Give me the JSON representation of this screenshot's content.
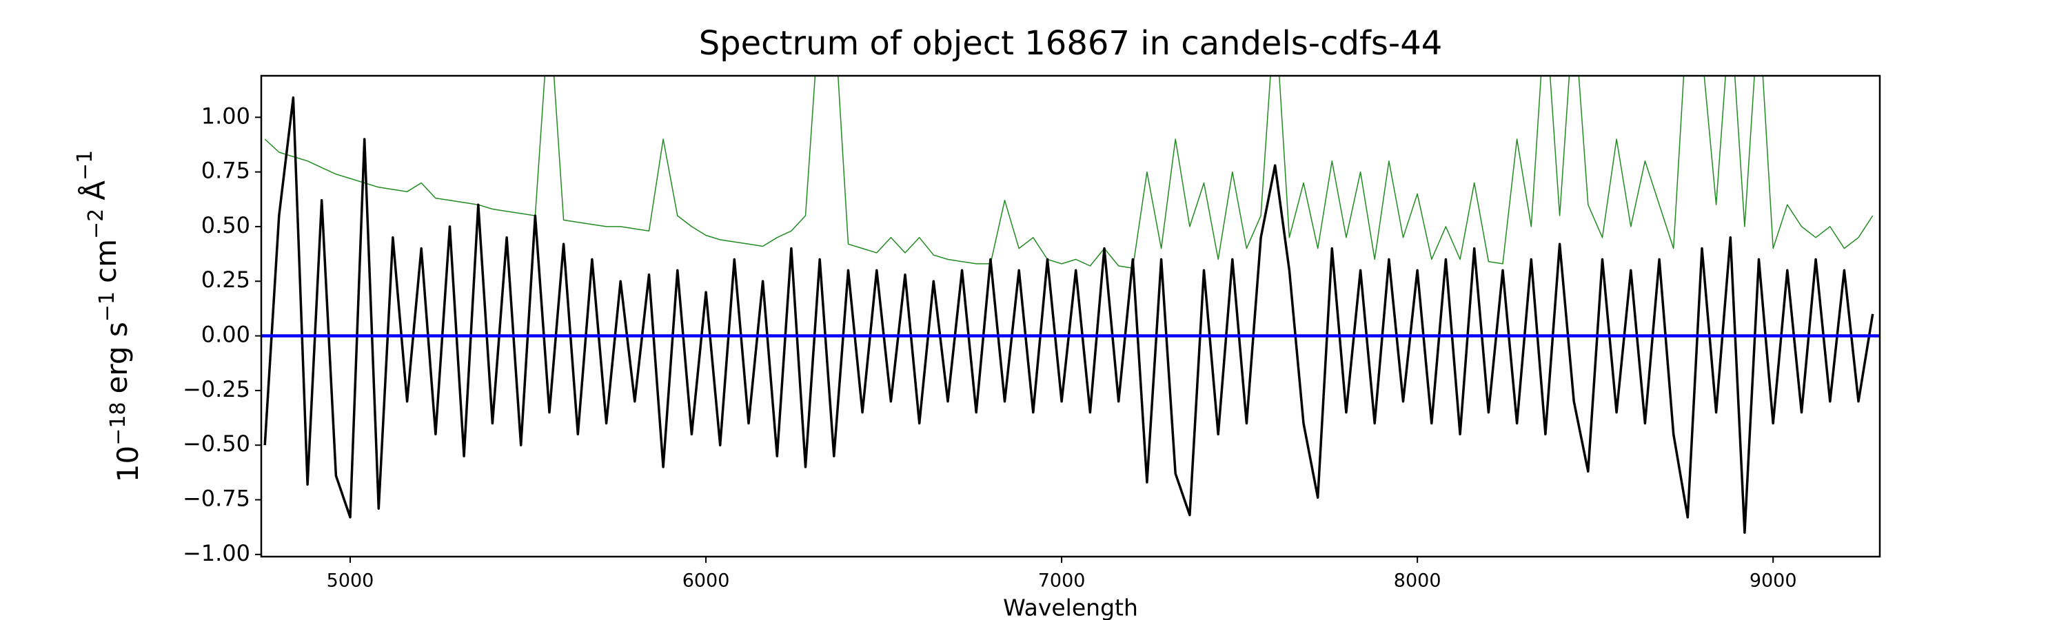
{
  "chart_data": {
    "type": "line",
    "title": "Spectrum of object 16867 in candels-cdfs-44",
    "xlabel": "Wavelength",
    "ylabel": [
      {
        "text": "10",
        "sup": "−18"
      },
      {
        "text": "erg s",
        "sup": "−1"
      },
      {
        "text": "cm",
        "sup": "−2"
      },
      {
        "text": "Å",
        "sup": "−1"
      }
    ],
    "xlim": [
      4750,
      9300
    ],
    "ylim": [
      -1.01,
      1.19
    ],
    "xticks": [
      5000,
      6000,
      7000,
      8000,
      9000
    ],
    "yticks": [
      {
        "value": -1,
        "label": "−1.00"
      },
      {
        "value": -0.75,
        "label": "−0.75"
      },
      {
        "value": -0.5,
        "label": "−0.50"
      },
      {
        "value": -0.25,
        "label": "−0.25"
      },
      {
        "value": 0,
        "label": "0.00"
      },
      {
        "value": 0.25,
        "label": "0.25"
      },
      {
        "value": 0.5,
        "label": "0.50"
      },
      {
        "value": 0.75,
        "label": "0.75"
      },
      {
        "value": 1,
        "label": "1.00"
      }
    ],
    "hlines": [
      {
        "y": 0,
        "color": "#0000ff"
      }
    ],
    "x": [
      4760,
      4800,
      4840,
      4880,
      4920,
      4960,
      5000,
      5040,
      5080,
      5120,
      5160,
      5200,
      5240,
      5280,
      5320,
      5360,
      5400,
      5440,
      5480,
      5520,
      5560,
      5600,
      5640,
      5680,
      5720,
      5760,
      5800,
      5840,
      5880,
      5920,
      5960,
      6000,
      6040,
      6080,
      6120,
      6160,
      6200,
      6240,
      6280,
      6320,
      6360,
      6400,
      6440,
      6480,
      6520,
      6560,
      6600,
      6640,
      6680,
      6720,
      6760,
      6800,
      6840,
      6880,
      6920,
      6960,
      7000,
      7040,
      7080,
      7120,
      7160,
      7200,
      7240,
      7280,
      7320,
      7360,
      7400,
      7440,
      7480,
      7520,
      7560,
      7600,
      7640,
      7680,
      7720,
      7760,
      7800,
      7840,
      7880,
      7920,
      7960,
      8000,
      8040,
      8080,
      8120,
      8160,
      8200,
      8240,
      8280,
      8320,
      8360,
      8400,
      8440,
      8480,
      8520,
      8560,
      8600,
      8640,
      8680,
      8720,
      8760,
      8800,
      8840,
      8880,
      8920,
      8960,
      9000,
      9040,
      9080,
      9120,
      9160,
      9200,
      9240,
      9280
    ],
    "series": [
      {
        "color": "#228b22",
        "width": 1.5,
        "values": [
          0.9,
          0.84,
          0.82,
          0.8,
          0.77,
          0.74,
          0.72,
          0.7,
          0.68,
          0.67,
          0.66,
          0.7,
          0.63,
          0.62,
          0.61,
          0.6,
          0.58,
          0.57,
          0.56,
          0.55,
          1.5,
          0.53,
          0.52,
          0.51,
          0.5,
          0.5,
          0.49,
          0.48,
          0.9,
          0.55,
          0.5,
          0.46,
          0.44,
          0.43,
          0.42,
          0.41,
          0.45,
          0.48,
          0.55,
          1.5,
          1.5,
          0.42,
          0.4,
          0.38,
          0.45,
          0.38,
          0.45,
          0.37,
          0.35,
          0.34,
          0.33,
          0.33,
          0.62,
          0.4,
          0.45,
          0.35,
          0.33,
          0.35,
          0.32,
          0.4,
          0.32,
          0.31,
          0.75,
          0.4,
          0.9,
          0.5,
          0.7,
          0.35,
          0.75,
          0.4,
          0.55,
          1.5,
          0.45,
          0.7,
          0.4,
          0.8,
          0.45,
          0.75,
          0.35,
          0.8,
          0.45,
          0.65,
          0.35,
          0.5,
          0.35,
          0.7,
          0.34,
          0.33,
          0.9,
          0.5,
          1.5,
          0.55,
          1.5,
          0.6,
          0.45,
          0.9,
          0.5,
          0.8,
          0.6,
          0.4,
          1.5,
          1.3,
          0.6,
          1.5,
          0.5,
          1.5,
          0.4,
          0.6,
          0.5,
          0.45,
          0.5,
          0.4,
          0.45,
          0.55
        ]
      },
      {
        "color": "#000000",
        "width": 3.5,
        "values": [
          -0.5,
          0.55,
          1.09,
          -0.68,
          0.62,
          -0.64,
          -0.83,
          0.9,
          -0.79,
          0.45,
          -0.3,
          0.4,
          -0.45,
          0.5,
          -0.55,
          0.6,
          -0.4,
          0.45,
          -0.5,
          0.55,
          -0.35,
          0.42,
          -0.45,
          0.35,
          -0.4,
          0.25,
          -0.3,
          0.28,
          -0.6,
          0.3,
          -0.45,
          0.2,
          -0.5,
          0.35,
          -0.4,
          0.25,
          -0.55,
          0.4,
          -0.6,
          0.35,
          -0.55,
          0.3,
          -0.35,
          0.3,
          -0.3,
          0.28,
          -0.4,
          0.25,
          -0.3,
          0.3,
          -0.35,
          0.35,
          -0.3,
          0.3,
          -0.35,
          0.35,
          -0.3,
          0.3,
          -0.35,
          0.4,
          -0.3,
          0.35,
          -0.67,
          0.35,
          -0.63,
          -0.82,
          0.3,
          -0.45,
          0.35,
          -0.4,
          0.45,
          0.78,
          0.3,
          -0.4,
          -0.74,
          0.4,
          -0.35,
          0.3,
          -0.4,
          0.35,
          -0.3,
          0.3,
          -0.4,
          0.35,
          -0.45,
          0.4,
          -0.35,
          0.3,
          -0.4,
          0.35,
          -0.45,
          0.42,
          -0.3,
          -0.62,
          0.35,
          -0.35,
          0.3,
          -0.4,
          0.35,
          -0.45,
          -0.83,
          0.4,
          -0.35,
          0.45,
          -0.9,
          0.35,
          -0.4,
          0.3,
          -0.35,
          0.35,
          -0.3,
          0.3,
          -0.3,
          0.1
        ]
      }
    ]
  }
}
